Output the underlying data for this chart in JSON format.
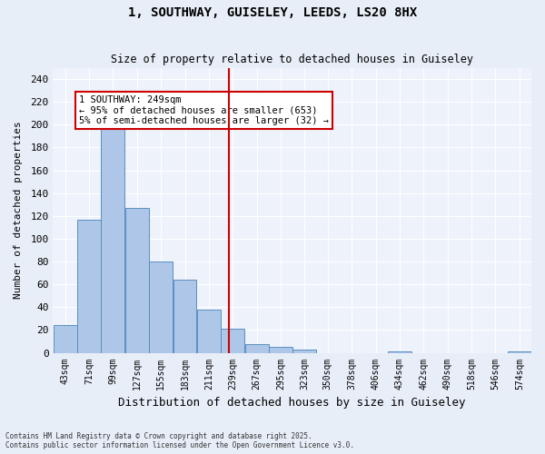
{
  "title_line1": "1, SOUTHWAY, GUISELEY, LEEDS, LS20 8HX",
  "title_line2": "Size of property relative to detached houses in Guiseley",
  "xlabel": "Distribution of detached houses by size in Guiseley",
  "ylabel": "Number of detached properties",
  "footer_line1": "Contains HM Land Registry data © Crown copyright and database right 2025.",
  "footer_line2": "Contains public sector information licensed under the Open Government Licence v3.0.",
  "bin_edges": [
    43,
    71,
    99,
    127,
    155,
    183,
    211,
    239,
    267,
    295,
    323,
    350,
    378,
    406,
    434,
    462,
    490,
    518,
    546,
    574,
    602
  ],
  "bar_heights": [
    24,
    117,
    200,
    127,
    80,
    64,
    38,
    21,
    8,
    5,
    3,
    0,
    0,
    0,
    1,
    0,
    0,
    0,
    0,
    1
  ],
  "bar_color": "#aec6e8",
  "bar_edge_color": "#5a8fc0",
  "property_size": 249,
  "vline_color": "#cc0000",
  "annotation_text": "1 SOUTHWAY: 249sqm\n← 95% of detached houses are smaller (653)\n5% of semi-detached houses are larger (32) →",
  "annotation_box_color": "#cc0000",
  "fig_background_color": "#e8eef8",
  "ax_background_color": "#eef2fb",
  "grid_color": "#ffffff",
  "ylim": [
    0,
    250
  ],
  "yticks": [
    0,
    20,
    40,
    60,
    80,
    100,
    120,
    140,
    160,
    180,
    200,
    220,
    240
  ]
}
